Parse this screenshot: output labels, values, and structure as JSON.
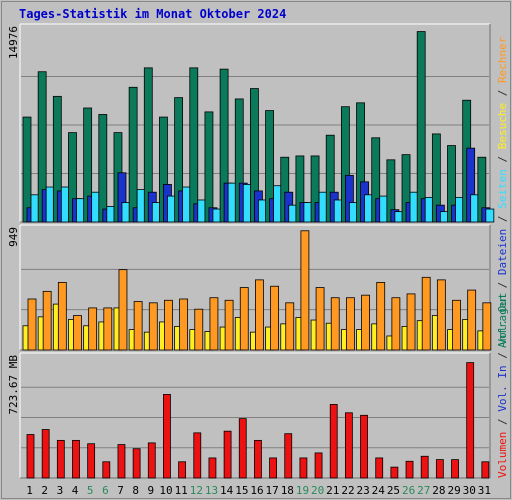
{
  "title": "Tages-Statistik im Monat Oktober 2024",
  "colors": {
    "background": "#c0c0c0",
    "hits": "#0b7a5a",
    "files": "#1a33cc",
    "pages": "#33ddff",
    "visits": "#ffee22",
    "sites": "#ff9922",
    "kbytes": "#ee1111",
    "title": "#0000cc",
    "weekend_day": "#2a8a5a",
    "grid": "#808080"
  },
  "right_legend": {
    "top": [
      {
        "text": "Anfragen",
        "color": "#0b7a5a"
      },
      {
        "text": "Dateien",
        "color": "#1a33cc"
      },
      {
        "text": "Seiten",
        "color": "#33ddff"
      },
      {
        "text": "Besuche",
        "color": "#ffee22"
      },
      {
        "text": "Rechner",
        "color": "#ff9922"
      }
    ],
    "bottom": [
      {
        "text": "Volumen",
        "color": "#ee1111"
      },
      {
        "text": "Vol. In",
        "color": "#1a33cc"
      },
      {
        "text": "Vol. Out",
        "color": "#0b7a5a"
      }
    ],
    "separator": "/",
    "separator_color": "#333333"
  },
  "chart_data": [
    {
      "type": "bar",
      "name": "hits-files-pages",
      "ymax_label": "14976",
      "ylim": [
        0,
        14976
      ],
      "categories": [
        "1",
        "2",
        "3",
        "4",
        "5",
        "6",
        "7",
        "8",
        "9",
        "10",
        "11",
        "12",
        "13",
        "14",
        "15",
        "16",
        "17",
        "18",
        "19",
        "20",
        "21",
        "22",
        "23",
        "24",
        "25",
        "26",
        "27",
        "28",
        "29",
        "30",
        "31"
      ],
      "series": [
        {
          "name": "Anfragen",
          "color": "#0b7a5a",
          "values": [
            8100,
            11600,
            9700,
            6900,
            8800,
            8300,
            6900,
            10400,
            11900,
            8100,
            9600,
            11900,
            8500,
            11800,
            9500,
            10300,
            8600,
            5000,
            5100,
            5100,
            6700,
            8900,
            9200,
            6500,
            4800,
            5200,
            14700,
            6800,
            5900,
            9400,
            5000
          ]
        },
        {
          "name": "Dateien",
          "color": "#1a33cc",
          "values": [
            1100,
            2500,
            2400,
            1800,
            2000,
            1000,
            3800,
            1100,
            2300,
            2900,
            2400,
            1400,
            1100,
            3000,
            3000,
            2400,
            1800,
            2300,
            1500,
            1500,
            2300,
            3600,
            3100,
            1800,
            950,
            1500,
            1800,
            1300,
            1300,
            5700,
            1100
          ]
        },
        {
          "name": "Seiten",
          "color": "#33ddff",
          "values": [
            2100,
            2700,
            2700,
            1800,
            2300,
            1200,
            1500,
            2500,
            1500,
            2000,
            2700,
            1700,
            1000,
            3000,
            2900,
            1700,
            2800,
            1300,
            1500,
            2300,
            1700,
            1500,
            2100,
            2000,
            800,
            2300,
            1900,
            800,
            1900,
            2100,
            1000
          ]
        }
      ]
    },
    {
      "type": "bar",
      "name": "visits-sites",
      "ymax_label": "949",
      "ylim": [
        0,
        949
      ],
      "categories": [
        "1",
        "2",
        "3",
        "4",
        "5",
        "6",
        "7",
        "8",
        "9",
        "10",
        "11",
        "12",
        "13",
        "14",
        "15",
        "16",
        "17",
        "18",
        "19",
        "20",
        "21",
        "22",
        "23",
        "24",
        "25",
        "26",
        "27",
        "28",
        "29",
        "30",
        "31"
      ],
      "series": [
        {
          "name": "Besuche",
          "color": "#ffee22",
          "values": [
            190,
            260,
            360,
            240,
            190,
            220,
            330,
            160,
            140,
            220,
            185,
            160,
            145,
            180,
            255,
            140,
            180,
            205,
            255,
            235,
            210,
            160,
            160,
            205,
            110,
            185,
            230,
            270,
            160,
            240,
            150
          ]
        },
        {
          "name": "Rechner",
          "color": "#ff9922",
          "values": [
            400,
            460,
            530,
            270,
            330,
            330,
            630,
            380,
            370,
            390,
            400,
            320,
            410,
            390,
            490,
            550,
            500,
            370,
            935,
            490,
            410,
            410,
            430,
            530,
            410,
            440,
            570,
            550,
            390,
            470,
            370
          ]
        }
      ]
    },
    {
      "type": "bar",
      "name": "volume",
      "ymax_label": "723.67 MB",
      "ylim": [
        0,
        723.67
      ],
      "categories": [
        "1",
        "2",
        "3",
        "4",
        "5",
        "6",
        "7",
        "8",
        "9",
        "10",
        "11",
        "12",
        "13",
        "14",
        "15",
        "16",
        "17",
        "18",
        "19",
        "20",
        "21",
        "22",
        "23",
        "24",
        "25",
        "26",
        "27",
        "28",
        "29",
        "30",
        "31"
      ],
      "series": [
        {
          "name": "Volumen",
          "color": "#ee1111",
          "values": [
            260,
            290,
            225,
            225,
            205,
            97,
            200,
            175,
            210,
            500,
            97,
            270,
            120,
            280,
            355,
            225,
            120,
            265,
            120,
            150,
            440,
            390,
            375,
            120,
            65,
            100,
            130,
            110,
            110,
            690,
            97
          ]
        }
      ]
    }
  ],
  "x_axis": {
    "labels": [
      "1",
      "2",
      "3",
      "4",
      "5",
      "6",
      "7",
      "8",
      "9",
      "10",
      "11",
      "12",
      "13",
      "14",
      "15",
      "16",
      "17",
      "18",
      "19",
      "20",
      "21",
      "22",
      "23",
      "24",
      "25",
      "26",
      "27",
      "28",
      "29",
      "30",
      "31"
    ],
    "weekend_days": [
      "5",
      "6",
      "12",
      "13",
      "19",
      "20",
      "26",
      "27"
    ]
  }
}
